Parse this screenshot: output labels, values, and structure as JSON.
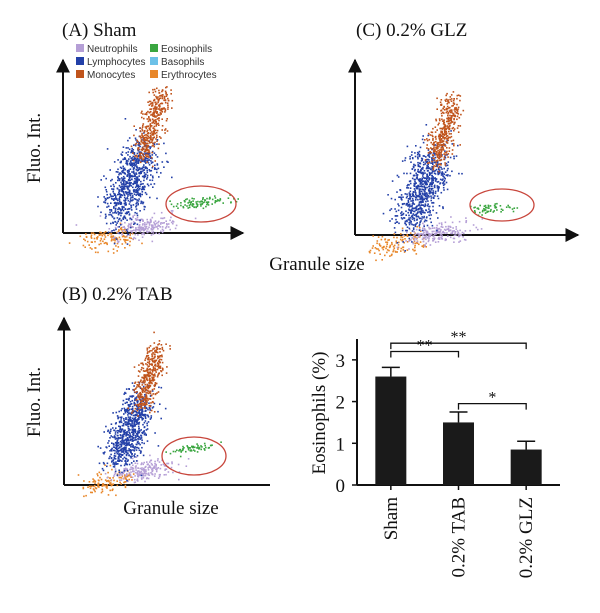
{
  "panels": {
    "a_title": "(A) Sham",
    "b_title": "(B) 0.2% TAB",
    "c_title": "(C) 0.2% GLZ",
    "y_label": "Fluo. Int.",
    "x_label": "Granule size"
  },
  "legend": [
    {
      "label": "Neutrophils",
      "color": "#b59fd6"
    },
    {
      "label": "Eosinophils",
      "color": "#3aa640"
    },
    {
      "label": "Lymphocytes",
      "color": "#2340a8"
    },
    {
      "label": "Basophils",
      "color": "#6cc1e8"
    },
    {
      "label": "Monocytes",
      "color": "#c0541c"
    },
    {
      "label": "Erythrocytes",
      "color": "#e8872a"
    }
  ],
  "chart_data": {
    "type": "bar",
    "categories": [
      "Sham",
      "0.2% TAB",
      "0.2% GLZ"
    ],
    "values": [
      2.6,
      1.5,
      0.85
    ],
    "errors": [
      0.22,
      0.25,
      0.2
    ],
    "ylabel": "Eosinophils (%)",
    "ylim": [
      0,
      3.5
    ],
    "yticks": [
      "0",
      "1",
      "2",
      "3"
    ],
    "bar_color": "#1a1a1a",
    "significance": [
      {
        "from": 0,
        "to": 1,
        "label": "**"
      },
      {
        "from": 0,
        "to": 2,
        "label": "**"
      },
      {
        "from": 1,
        "to": 2,
        "label": "*"
      }
    ]
  }
}
